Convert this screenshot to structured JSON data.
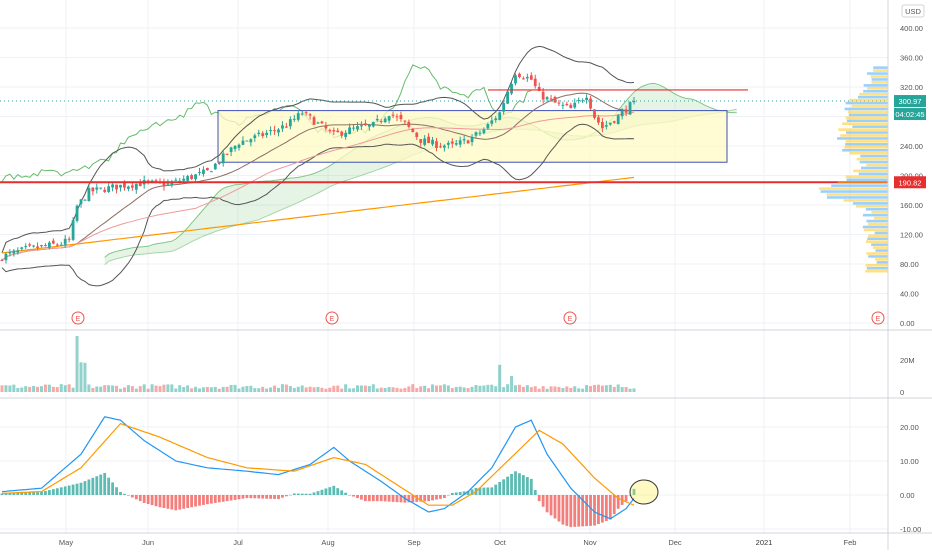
{
  "currency_label": "USD",
  "price_axis": {
    "ticks": [
      "400.00",
      "360.00",
      "320.00",
      "280.00",
      "240.00",
      "200.00",
      "160.00",
      "120.00",
      "80.00",
      "40.00",
      "0.00"
    ],
    "values": [
      400,
      360,
      320,
      280,
      240,
      200,
      160,
      120,
      80,
      40,
      0
    ]
  },
  "last_price_label": "300.97",
  "countdown_label": "04:02:45",
  "support_price_label": "190.82",
  "volume_axis": {
    "ticks": [
      "20M",
      "0"
    ]
  },
  "macd_axis": {
    "ticks": [
      "20.00",
      "10.00",
      "0.00",
      "-10.00"
    ],
    "values": [
      20,
      10,
      0,
      -10
    ]
  },
  "time_axis": {
    "labels": [
      "May",
      "Jun",
      "Jul",
      "Aug",
      "Sep",
      "Oct",
      "Nov",
      "Dec",
      "2021",
      "Feb"
    ]
  },
  "earnings_marker_label": "E",
  "chart_data": {
    "type": "candlestick",
    "timeframe": "daily",
    "period": "May 2020 – Feb 2021",
    "price_range": [
      0,
      420
    ],
    "macd_range": [
      -12,
      26
    ],
    "horizontal_levels": [
      {
        "price": 190.82,
        "color": "#e62e2e"
      },
      {
        "price": 316,
        "color": "#e62e2e"
      }
    ],
    "rectangles": [
      {
        "price_top": 288,
        "price_bottom": 218,
        "from_month": "Jun",
        "to_month": "Dec",
        "fill": "#fff9c4"
      }
    ],
    "last_price": 300.97,
    "colors": {
      "up": "#26a69a",
      "down": "#ef5350",
      "macd": "#2196f3",
      "signal": "#ff9800",
      "bands": "#555555",
      "ichimoku": "#4caf50"
    }
  }
}
